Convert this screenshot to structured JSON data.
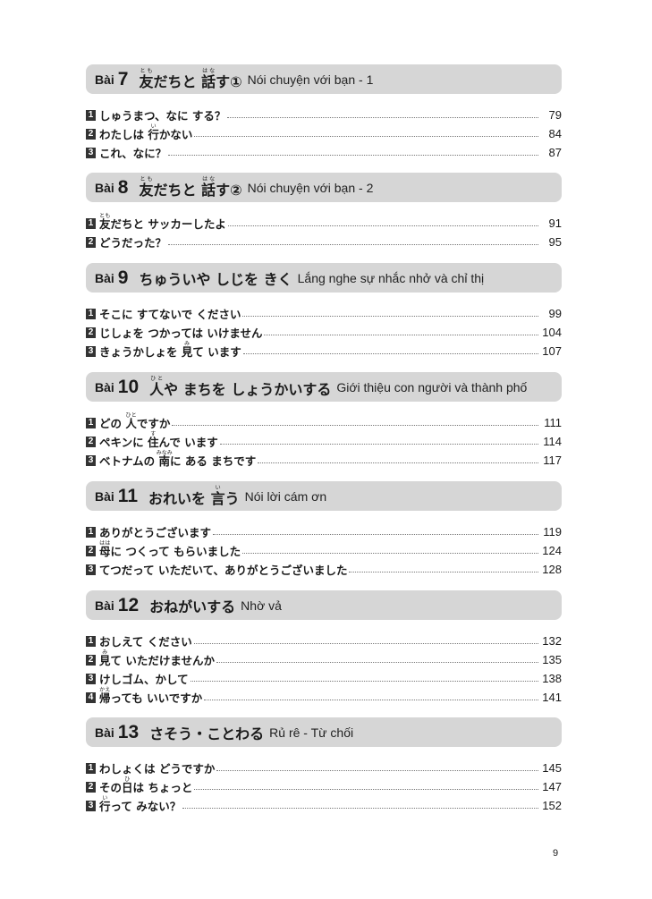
{
  "lesson_prefix": "Bài",
  "sections": [
    {
      "number": "7",
      "title": [
        {
          "t": "友",
          "r": "とも"
        },
        {
          "t": "だちと "
        },
        {
          "t": "話",
          "r": "はな"
        },
        {
          "t": "す①"
        }
      ],
      "subtitle": "Nói chuyện với bạn - 1",
      "items": [
        {
          "n": "1",
          "title": [
            {
              "t": "しゅうまつ、なに する？"
            }
          ],
          "page": "79"
        },
        {
          "n": "2",
          "title": [
            {
              "t": "わたしは "
            },
            {
              "t": "行",
              "r": "い"
            },
            {
              "t": "かない"
            }
          ],
          "page": "84"
        },
        {
          "n": "3",
          "title": [
            {
              "t": "これ、なに？"
            }
          ],
          "page": "87"
        }
      ]
    },
    {
      "number": "8",
      "title": [
        {
          "t": "友",
          "r": "とも"
        },
        {
          "t": "だちと "
        },
        {
          "t": "話",
          "r": "はな"
        },
        {
          "t": "す②"
        }
      ],
      "subtitle": "Nói chuyện với bạn - 2",
      "items": [
        {
          "n": "1",
          "title": [
            {
              "t": "友",
              "r": "とも"
            },
            {
              "t": "だちと サッカーしたよ"
            }
          ],
          "page": "91"
        },
        {
          "n": "2",
          "title": [
            {
              "t": "どうだった？"
            }
          ],
          "page": "95"
        }
      ]
    },
    {
      "number": "9",
      "title": [
        {
          "t": "ちゅういや しじを きく"
        }
      ],
      "subtitle": "Lắng nghe sự nhắc nhở và chỉ thị",
      "items": [
        {
          "n": "1",
          "title": [
            {
              "t": "そこに すてないで ください"
            }
          ],
          "page": "99"
        },
        {
          "n": "2",
          "title": [
            {
              "t": "じしょを つかっては いけません"
            }
          ],
          "page": "104"
        },
        {
          "n": "3",
          "title": [
            {
              "t": "きょうかしょを "
            },
            {
              "t": "見",
              "r": "み"
            },
            {
              "t": "て います"
            }
          ],
          "page": "107"
        }
      ]
    },
    {
      "number": "10",
      "title": [
        {
          "t": "人",
          "r": "ひと"
        },
        {
          "t": "や まちを しょうかいする"
        }
      ],
      "subtitle": "Giới thiệu con người và thành phố",
      "items": [
        {
          "n": "1",
          "title": [
            {
              "t": "どの "
            },
            {
              "t": "人",
              "r": "ひと"
            },
            {
              "t": "ですか"
            }
          ],
          "page": "111"
        },
        {
          "n": "2",
          "title": [
            {
              "t": "ペキンに "
            },
            {
              "t": "住",
              "r": "す"
            },
            {
              "t": "んで います"
            }
          ],
          "page": "114"
        },
        {
          "n": "3",
          "title": [
            {
              "t": "ベトナムの "
            },
            {
              "t": "南",
              "r": "みなみ"
            },
            {
              "t": "に ある まちです"
            }
          ],
          "page": "117"
        }
      ]
    },
    {
      "number": "11",
      "title": [
        {
          "t": "おれいを "
        },
        {
          "t": "言",
          "r": "い"
        },
        {
          "t": "う"
        }
      ],
      "subtitle": "Nói lời cám ơn",
      "items": [
        {
          "n": "1",
          "title": [
            {
              "t": "ありがとうございます"
            }
          ],
          "page": "119"
        },
        {
          "n": "2",
          "title": [
            {
              "t": "母",
              "r": "はは"
            },
            {
              "t": "に つくって もらいました"
            }
          ],
          "page": "124"
        },
        {
          "n": "3",
          "title": [
            {
              "t": "てつだって いただいて、ありがとうございました"
            }
          ],
          "page": "128"
        }
      ]
    },
    {
      "number": "12",
      "title": [
        {
          "t": "おねがいする"
        }
      ],
      "subtitle": "Nhờ vả",
      "items": [
        {
          "n": "1",
          "title": [
            {
              "t": "おしえて ください"
            }
          ],
          "page": "132"
        },
        {
          "n": "2",
          "title": [
            {
              "t": "見",
              "r": "み"
            },
            {
              "t": "て いただけませんか"
            }
          ],
          "page": "135"
        },
        {
          "n": "3",
          "title": [
            {
              "t": "けしゴム、かして"
            }
          ],
          "page": "138"
        },
        {
          "n": "4",
          "title": [
            {
              "t": "帰",
              "r": "かえ"
            },
            {
              "t": "っても いいですか"
            }
          ],
          "page": "141"
        }
      ]
    },
    {
      "number": "13",
      "title": [
        {
          "t": "さそう・ことわる"
        }
      ],
      "subtitle": "Rủ rê - Từ chối",
      "items": [
        {
          "n": "1",
          "title": [
            {
              "t": "わしょくは どうですか"
            }
          ],
          "page": "145"
        },
        {
          "n": "2",
          "title": [
            {
              "t": "その"
            },
            {
              "t": "日",
              "r": "ひ"
            },
            {
              "t": "は ちょっと"
            }
          ],
          "page": "147"
        },
        {
          "n": "3",
          "title": [
            {
              "t": "行",
              "r": "い"
            },
            {
              "t": "って みない？"
            }
          ],
          "page": "152"
        }
      ]
    }
  ],
  "page_number": "9"
}
